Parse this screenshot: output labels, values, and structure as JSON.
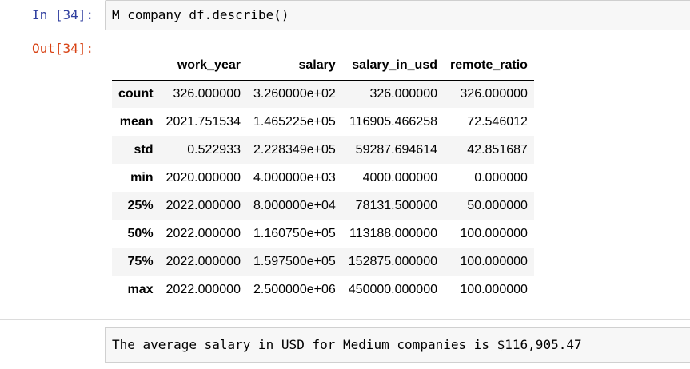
{
  "cell": {
    "in_prompt": "In [34]:",
    "code": "M_company_df.describe()",
    "out_prompt": "Out[34]:"
  },
  "dataframe": {
    "columns": [
      "work_year",
      "salary",
      "salary_in_usd",
      "remote_ratio"
    ],
    "rows": [
      {
        "index": "count",
        "cells": [
          "326.000000",
          "3.260000e+02",
          "326.000000",
          "326.000000"
        ]
      },
      {
        "index": "mean",
        "cells": [
          "2021.751534",
          "1.465225e+05",
          "116905.466258",
          "72.546012"
        ]
      },
      {
        "index": "std",
        "cells": [
          "0.522933",
          "2.228349e+05",
          "59287.694614",
          "42.851687"
        ]
      },
      {
        "index": "min",
        "cells": [
          "2020.000000",
          "4.000000e+03",
          "4000.000000",
          "0.000000"
        ]
      },
      {
        "index": "25%",
        "cells": [
          "2022.000000",
          "8.000000e+04",
          "78131.500000",
          "50.000000"
        ]
      },
      {
        "index": "50%",
        "cells": [
          "2022.000000",
          "1.160750e+05",
          "113188.000000",
          "100.000000"
        ]
      },
      {
        "index": "75%",
        "cells": [
          "2022.000000",
          "1.597500e+05",
          "152875.000000",
          "100.000000"
        ]
      },
      {
        "index": "max",
        "cells": [
          "2022.000000",
          "2.500000e+06",
          "450000.000000",
          "100.000000"
        ]
      }
    ]
  },
  "stdout": {
    "text": "The average salary in USD for Medium companies is $116,905.47"
  }
}
